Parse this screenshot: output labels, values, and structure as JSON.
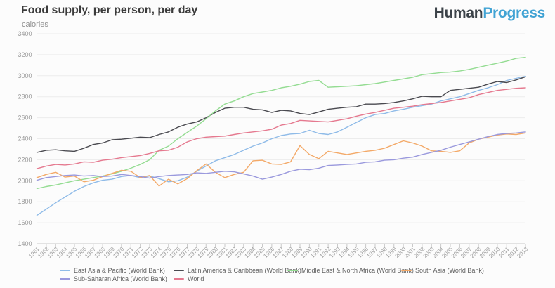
{
  "header": {
    "title": "Food supply, per person, per day",
    "subtitle": "calories"
  },
  "logo": {
    "part1": "Human",
    "part2": "Progress",
    "part1_color": "#3c4349",
    "part2_color": "#41a3d4"
  },
  "chart_data": {
    "type": "line",
    "title": "Food supply, per person, per day",
    "subtitle": "calories",
    "xlabel": "",
    "ylabel": "calories",
    "ylim": [
      1400,
      3400
    ],
    "ytick_step": 200,
    "grid": true,
    "legend_position": "bottom",
    "x": [
      1961,
      1962,
      1963,
      1964,
      1965,
      1966,
      1967,
      1968,
      1969,
      1970,
      1971,
      1972,
      1973,
      1974,
      1975,
      1976,
      1977,
      1978,
      1979,
      1980,
      1981,
      1982,
      1983,
      1984,
      1985,
      1986,
      1987,
      1988,
      1989,
      1990,
      1991,
      1992,
      1993,
      1994,
      1995,
      1996,
      1997,
      1998,
      1999,
      2000,
      2001,
      2002,
      2003,
      2004,
      2005,
      2006,
      2007,
      2008,
      2009,
      2010,
      2011,
      2012,
      2013
    ],
    "series": [
      {
        "name": "East Asia & Pacific (World Bank)",
        "color": "#8fbbe8",
        "values": [
          1670,
          1730,
          1790,
          1845,
          1900,
          1945,
          1980,
          2005,
          2015,
          2040,
          2050,
          2030,
          2045,
          2020,
          1990,
          2000,
          2035,
          2090,
          2140,
          2190,
          2220,
          2250,
          2290,
          2330,
          2360,
          2400,
          2430,
          2445,
          2450,
          2480,
          2450,
          2440,
          2465,
          2510,
          2555,
          2600,
          2630,
          2640,
          2665,
          2680,
          2700,
          2715,
          2730,
          2760,
          2780,
          2800,
          2830,
          2860,
          2885,
          2915,
          2955,
          2975,
          2995
        ]
      },
      {
        "name": "Latin America & Caribbean (World Bank)",
        "color": "#4a4a50",
        "values": [
          2270,
          2290,
          2295,
          2285,
          2280,
          2310,
          2345,
          2360,
          2390,
          2395,
          2405,
          2415,
          2410,
          2440,
          2465,
          2510,
          2540,
          2560,
          2600,
          2650,
          2690,
          2700,
          2700,
          2680,
          2675,
          2650,
          2670,
          2665,
          2640,
          2630,
          2655,
          2680,
          2690,
          2700,
          2705,
          2730,
          2730,
          2735,
          2745,
          2760,
          2780,
          2805,
          2800,
          2800,
          2860,
          2870,
          2880,
          2890,
          2920,
          2945,
          2935,
          2960,
          2990
        ]
      },
      {
        "name": "Middle East & North Africa (World Bank)",
        "color": "#94dc92",
        "values": [
          1925,
          1945,
          1960,
          1980,
          2000,
          2015,
          2030,
          2045,
          2065,
          2090,
          2120,
          2155,
          2200,
          2290,
          2330,
          2400,
          2460,
          2520,
          2590,
          2665,
          2730,
          2760,
          2800,
          2830,
          2845,
          2860,
          2885,
          2900,
          2920,
          2945,
          2955,
          2890,
          2895,
          2900,
          2905,
          2915,
          2925,
          2940,
          2955,
          2970,
          2985,
          3010,
          3020,
          3030,
          3035,
          3045,
          3060,
          3080,
          3100,
          3120,
          3140,
          3165,
          3175
        ]
      },
      {
        "name": "South Asia (World Bank)",
        "color": "#f3a968",
        "values": [
          2030,
          2060,
          2080,
          2035,
          2045,
          1990,
          2005,
          2040,
          2070,
          2100,
          2090,
          2030,
          2050,
          1950,
          2015,
          1970,
          2020,
          2095,
          2160,
          2080,
          2030,
          2060,
          2080,
          2190,
          2195,
          2160,
          2155,
          2180,
          2335,
          2250,
          2210,
          2280,
          2265,
          2250,
          2265,
          2280,
          2290,
          2310,
          2345,
          2380,
          2360,
          2330,
          2285,
          2280,
          2270,
          2285,
          2360,
          2395,
          2415,
          2435,
          2445,
          2440,
          2455
        ]
      },
      {
        "name": "Sub-Saharan Africa (World Bank)",
        "color": "#9a99dd",
        "values": [
          2005,
          2030,
          2040,
          2050,
          2055,
          2045,
          2050,
          2040,
          2045,
          2060,
          2050,
          2040,
          2025,
          2040,
          2050,
          2055,
          2060,
          2075,
          2070,
          2080,
          2090,
          2085,
          2065,
          2045,
          2015,
          2035,
          2060,
          2090,
          2110,
          2105,
          2120,
          2145,
          2150,
          2155,
          2160,
          2175,
          2180,
          2195,
          2200,
          2215,
          2225,
          2250,
          2270,
          2290,
          2320,
          2345,
          2370,
          2395,
          2420,
          2440,
          2450,
          2455,
          2465
        ]
      },
      {
        "name": "World",
        "color": "#e5798f",
        "values": [
          2115,
          2140,
          2155,
          2150,
          2160,
          2180,
          2175,
          2195,
          2205,
          2220,
          2230,
          2240,
          2260,
          2285,
          2290,
          2320,
          2370,
          2400,
          2415,
          2420,
          2425,
          2440,
          2455,
          2465,
          2475,
          2490,
          2530,
          2545,
          2575,
          2570,
          2565,
          2560,
          2575,
          2590,
          2615,
          2635,
          2650,
          2670,
          2690,
          2700,
          2710,
          2725,
          2735,
          2745,
          2760,
          2775,
          2790,
          2820,
          2840,
          2860,
          2870,
          2880,
          2885
        ]
      }
    ]
  }
}
